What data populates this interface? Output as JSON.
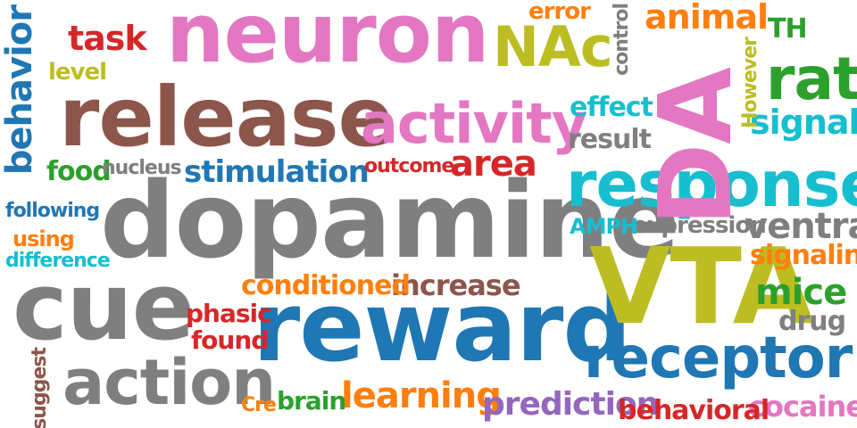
{
  "colors": {
    "pink": "#e377c2",
    "brown": "#8c564b",
    "gray": "#7f7f7f",
    "blue": "#1f77b4",
    "cyan": "#17becf",
    "olive": "#bcbd22",
    "green": "#2ca02c",
    "orange": "#ff7f0e",
    "red": "#d62728",
    "purple": "#9467bd"
  },
  "words": [
    {
      "text": "dopamine",
      "color": "#7f7f7f"
    },
    {
      "text": "reward",
      "color": "#1f77b4"
    },
    {
      "text": "release",
      "color": "#8c564b"
    },
    {
      "text": "neuron",
      "color": "#e377c2"
    },
    {
      "text": "VTA",
      "color": "#bcbd22"
    },
    {
      "text": "DA",
      "color": "#e377c2"
    },
    {
      "text": "cue",
      "color": "#7f7f7f"
    },
    {
      "text": "response",
      "color": "#17becf"
    },
    {
      "text": "activity",
      "color": "#e377c2"
    },
    {
      "text": "receptor",
      "color": "#1f77b4"
    },
    {
      "text": "action",
      "color": "#7f7f7f"
    },
    {
      "text": "NAc",
      "color": "#bcbd22"
    },
    {
      "text": "rat",
      "color": "#2ca02c"
    },
    {
      "text": "behavior",
      "color": "#1f77b4"
    },
    {
      "text": "mice",
      "color": "#2ca02c"
    },
    {
      "text": "ventral",
      "color": "#7f7f7f"
    },
    {
      "text": "learning",
      "color": "#ff7f0e"
    },
    {
      "text": "area",
      "color": "#d62728"
    },
    {
      "text": "increase",
      "color": "#8c564b"
    },
    {
      "text": "animal",
      "color": "#ff7f0e"
    },
    {
      "text": "signal",
      "color": "#17becf"
    },
    {
      "text": "stimulation",
      "color": "#1f77b4"
    },
    {
      "text": "task",
      "color": "#d62728"
    },
    {
      "text": "prediction",
      "color": "#9467bd"
    },
    {
      "text": "conditioned",
      "color": "#ff7f0e"
    },
    {
      "text": "cocaine",
      "color": "#e377c2"
    },
    {
      "text": "behavioral",
      "color": "#d62728"
    },
    {
      "text": "signaling",
      "color": "#ff7f0e"
    },
    {
      "text": "effect",
      "color": "#17becf"
    },
    {
      "text": "result",
      "color": "#7f7f7f"
    },
    {
      "text": "expression",
      "color": "#7f7f7f"
    },
    {
      "text": "food",
      "color": "#2ca02c"
    },
    {
      "text": "phasic",
      "color": "#d62728"
    },
    {
      "text": "found",
      "color": "#d62728"
    },
    {
      "text": "brain",
      "color": "#2ca02c"
    },
    {
      "text": "drug",
      "color": "#7f7f7f"
    },
    {
      "text": "TH",
      "color": "#2ca02c"
    },
    {
      "text": "error",
      "color": "#ff7f0e"
    },
    {
      "text": "outcome",
      "color": "#d62728"
    },
    {
      "text": "AMPH",
      "color": "#17becf"
    },
    {
      "text": "level",
      "color": "#bcbd22"
    },
    {
      "text": "nucleus",
      "color": "#7f7f7f"
    },
    {
      "text": "following",
      "color": "#1f77b4"
    },
    {
      "text": "using",
      "color": "#ff7f0e"
    },
    {
      "text": "difference",
      "color": "#17becf"
    },
    {
      "text": "control",
      "color": "#7f7f7f"
    },
    {
      "text": "However",
      "color": "#bcbd22"
    },
    {
      "text": "Cre",
      "color": "#ff7f0e"
    },
    {
      "text": "suggest",
      "color": "#8c564b"
    }
  ]
}
